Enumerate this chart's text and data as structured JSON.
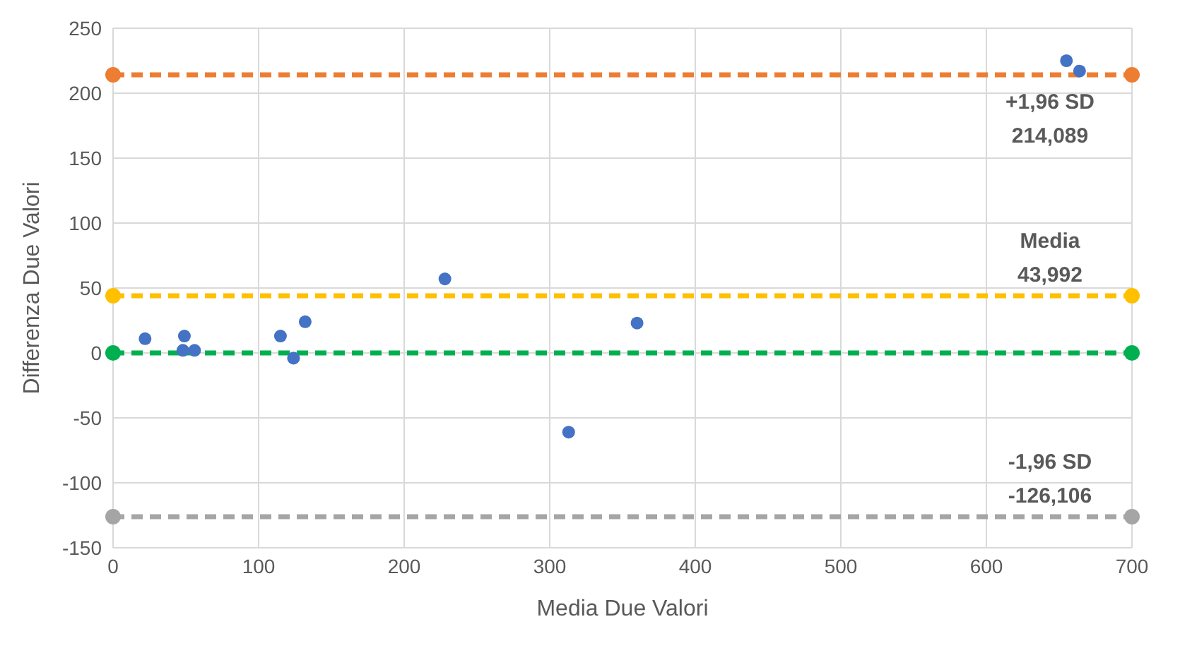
{
  "chart_data": {
    "type": "scatter",
    "xlabel": "Media Due Valori",
    "ylabel": "Differenza Due Valori",
    "xlim": [
      0,
      700
    ],
    "xticks": [
      0,
      100,
      200,
      300,
      400,
      500,
      600,
      700
    ],
    "ylim": [
      -150,
      250
    ],
    "yticks": [
      -150,
      -100,
      -50,
      0,
      50,
      100,
      150,
      200,
      250
    ],
    "grid": true,
    "marker": "circle",
    "series": [
      {
        "color": "#4472c4",
        "x": [
          22,
          49,
          48,
          56,
          115,
          124,
          132,
          228,
          313,
          360,
          655,
          664
        ],
        "values": [
          11,
          13,
          2,
          2,
          13,
          -4,
          24,
          57,
          -61,
          23,
          225,
          217
        ]
      }
    ],
    "ref_lines": [
      {
        "axis": "y",
        "value": 214.089,
        "label": "+1,96 SD\n214,089",
        "color": "#ed7d31",
        "line_style": "dashed"
      },
      {
        "axis": "y",
        "value": 43.992,
        "label": "Media\n43,992",
        "color": "#ffc000",
        "line_style": "dashed"
      },
      {
        "axis": "y",
        "value": 0,
        "color": "#00b050",
        "line_style": "dashed"
      },
      {
        "axis": "y",
        "value": -126.106,
        "label": "-1,96 SD\n-126,106",
        "color": "#a5a5a5",
        "line_style": "dashed"
      }
    ]
  }
}
